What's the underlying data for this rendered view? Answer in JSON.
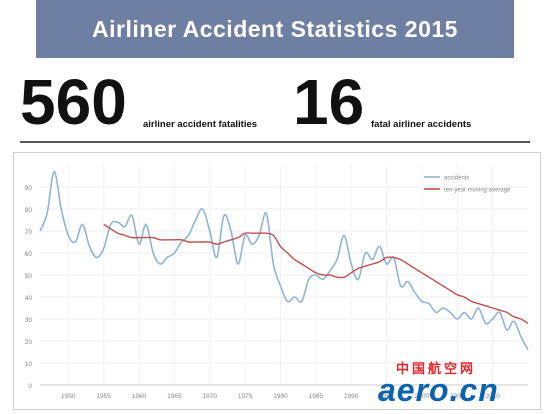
{
  "header": {
    "title": "Airliner Accident Statistics 2015"
  },
  "stats": [
    {
      "value": "560",
      "label": "airliner accident fatalities"
    },
    {
      "value": "16",
      "label": "fatal airliner accidents"
    }
  ],
  "logo": {
    "cn": "中国航空网",
    "en": "aero.cn"
  },
  "colors": {
    "accidents": "#8fb3d9",
    "moving_average": "#c0504d",
    "title_bar": "#6f7fa1"
  },
  "chart_data": {
    "type": "line",
    "title": "",
    "xlabel": "",
    "ylabel": "",
    "xlim": [
      1946,
      2015
    ],
    "ylim": [
      0,
      100
    ],
    "x_ticks": [
      "1950",
      "1955",
      "1960",
      "1965",
      "1970",
      "1975",
      "1980",
      "1985",
      "1990",
      "1995",
      "2000",
      "2005",
      "2010"
    ],
    "y_ticks": [
      "0",
      "10",
      "20",
      "30",
      "40",
      "50",
      "60",
      "70",
      "80",
      "90"
    ],
    "legend_position": "top-right",
    "grid": true,
    "series": [
      {
        "name": "accidents",
        "x": [
          1946,
          1947,
          1948,
          1949,
          1950,
          1951,
          1952,
          1953,
          1954,
          1955,
          1956,
          1957,
          1958,
          1959,
          1960,
          1961,
          1962,
          1963,
          1964,
          1965,
          1966,
          1967,
          1968,
          1969,
          1970,
          1971,
          1972,
          1973,
          1974,
          1975,
          1976,
          1977,
          1978,
          1979,
          1980,
          1981,
          1982,
          1983,
          1984,
          1985,
          1986,
          1987,
          1988,
          1989,
          1990,
          1991,
          1992,
          1993,
          1994,
          1995,
          1996,
          1997,
          1998,
          1999,
          2000,
          2001,
          2002,
          2003,
          2004,
          2005,
          2006,
          2007,
          2008,
          2009,
          2010,
          2011,
          2012,
          2013,
          2014,
          2015
        ],
        "values": [
          70,
          78,
          97,
          80,
          68,
          65,
          73,
          63,
          58,
          62,
          73,
          74,
          72,
          77,
          64,
          73,
          60,
          55,
          58,
          60,
          65,
          68,
          75,
          80,
          70,
          58,
          77,
          70,
          55,
          68,
          64,
          68,
          78,
          55,
          45,
          38,
          40,
          38,
          48,
          50,
          48,
          52,
          57,
          68,
          55,
          48,
          60,
          57,
          63,
          55,
          58,
          45,
          47,
          42,
          38,
          37,
          33,
          35,
          33,
          30,
          33,
          30,
          35,
          28,
          30,
          33,
          25,
          29,
          22,
          16
        ]
      },
      {
        "name": "ten-year moving average",
        "x": [
          1955,
          1956,
          1957,
          1958,
          1959,
          1960,
          1961,
          1962,
          1963,
          1964,
          1965,
          1966,
          1967,
          1968,
          1969,
          1970,
          1971,
          1972,
          1973,
          1974,
          1975,
          1976,
          1977,
          1978,
          1979,
          1980,
          1981,
          1982,
          1983,
          1984,
          1985,
          1986,
          1987,
          1988,
          1989,
          1990,
          1991,
          1992,
          1993,
          1994,
          1995,
          1996,
          1997,
          1998,
          1999,
          2000,
          2001,
          2002,
          2003,
          2004,
          2005,
          2006,
          2007,
          2008,
          2009,
          2010,
          2011,
          2012,
          2013,
          2014,
          2015
        ],
        "values": [
          73,
          71,
          69,
          68,
          67,
          67,
          67,
          67,
          66,
          66,
          66,
          66,
          65,
          65,
          65,
          65,
          64,
          65,
          66,
          67,
          69,
          69,
          69,
          69,
          68,
          63,
          60,
          57,
          55,
          53,
          51,
          50,
          50,
          49,
          49,
          51,
          53,
          54,
          55,
          56,
          58,
          58,
          57,
          55,
          53,
          51,
          49,
          47,
          45,
          43,
          41,
          40,
          38,
          37,
          36,
          35,
          34,
          33,
          31,
          30,
          28
        ]
      }
    ]
  }
}
